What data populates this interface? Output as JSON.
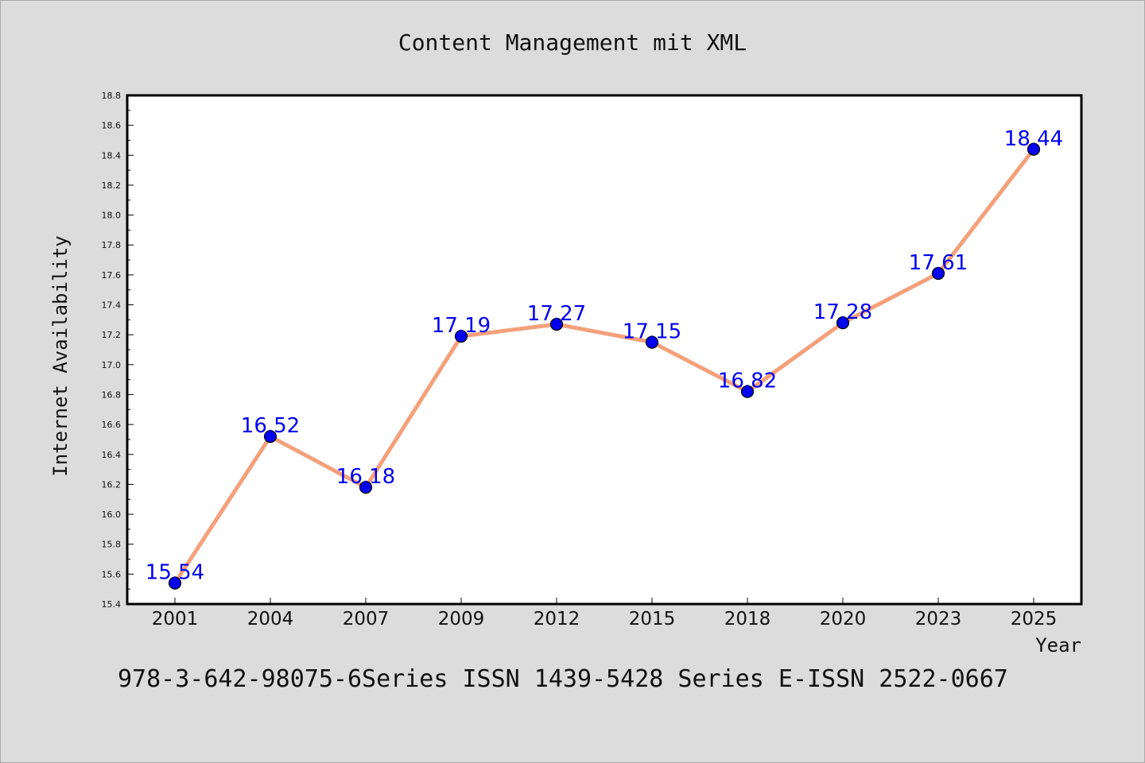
{
  "chart_data": {
    "type": "line",
    "title": "Content Management mit XML",
    "xlabel": "Year",
    "ylabel": "Internet Availability",
    "categories": [
      "2001",
      "2004",
      "2007",
      "2009",
      "2012",
      "2015",
      "2018",
      "2020",
      "2023",
      "2025"
    ],
    "series": [
      {
        "values": [
          15.54,
          16.52,
          16.18,
          17.19,
          17.27,
          17.15,
          16.82,
          17.28,
          17.61,
          18.44
        ],
        "line_color": "#f5a07a",
        "marker_color": "#0000ee"
      }
    ],
    "data_labels": [
      "15.54",
      "16.52",
      "16.18",
      "17.19",
      "17.27",
      "17.15",
      "16.82",
      "17.28",
      "17.61",
      "18.44"
    ],
    "ylim": [
      15.4,
      18.8
    ],
    "yticks": [
      "15.4",
      "15.6",
      "15.8",
      "16.0",
      "16.2",
      "16.4",
      "16.6",
      "16.8",
      "17.0",
      "17.2",
      "17.4",
      "17.6",
      "17.8",
      "18.0",
      "18.2",
      "18.4",
      "18.6",
      "18.8"
    ],
    "grid": false,
    "legend": "none"
  },
  "footer": {
    "text": "978-3-642-98075-6Series ISSN 1439-5428 Series E-ISSN 2522-0667"
  },
  "colors": {
    "background": "#dcdcdc",
    "plot_background": "#ffffff"
  }
}
